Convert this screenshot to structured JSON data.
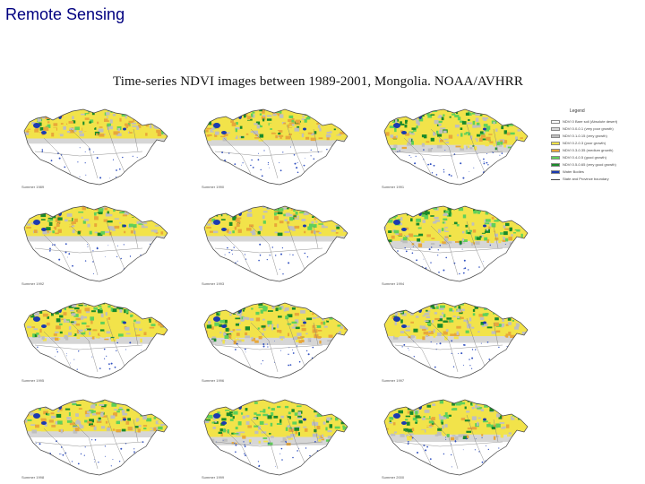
{
  "slide": {
    "title": "Remote Sensing"
  },
  "figure": {
    "title": "Time-series NDVI images between 1989-2001, Mongolia.  NOAA/AVHRR"
  },
  "panels": [
    {
      "label": "Summer 1989",
      "greenness": 0.25
    },
    {
      "label": "Summer 1990",
      "greenness": 0.35
    },
    {
      "label": "Summer 1991",
      "greenness": 0.65
    },
    {
      "label": "Summer 1992",
      "greenness": 0.3
    },
    {
      "label": "Summer 1993",
      "greenness": 0.3
    },
    {
      "label": "Summer 1994",
      "greenness": 0.6
    },
    {
      "label": "Summer 1995",
      "greenness": 0.55
    },
    {
      "label": "Summer 1996",
      "greenness": 0.6
    },
    {
      "label": "Summer 1997",
      "greenness": 0.5
    },
    {
      "label": "Summer 1998",
      "greenness": 0.4
    },
    {
      "label": "Summer 1999",
      "greenness": 0.75
    },
    {
      "label": "Summer 2000",
      "greenness": 0.6
    }
  ],
  "legend": {
    "title": "Legend",
    "items": [
      {
        "label": "NDVI 0 Bare soil (Absolute desert)",
        "color": "#ffffff",
        "kind": "swatch"
      },
      {
        "label": "NDVI 0.0-0.1 (very poor growth)",
        "color": "#d9d9d9",
        "kind": "swatch"
      },
      {
        "label": "NDVI 0.1-0.15 (very growth)",
        "color": "#bfbfbf",
        "kind": "swatch"
      },
      {
        "label": "NDVI 0.2-0.3 (poor growth)",
        "color": "#f2e34a",
        "kind": "swatch"
      },
      {
        "label": "NDVI 0.3-0.35 (medium growth)",
        "color": "#e8a73a",
        "kind": "swatch"
      },
      {
        "label": "NDVI 0.4-0.5 (good growth)",
        "color": "#5fd05a",
        "kind": "swatch"
      },
      {
        "label": "NDVI 0.5-0.65 (very good growth)",
        "color": "#1a8a2a",
        "kind": "swatch"
      },
      {
        "label": "Water Bodies",
        "color": "#1a3ab0",
        "kind": "swatch"
      },
      {
        "label": "State and Province boundary",
        "color": "#444444",
        "kind": "line"
      }
    ]
  }
}
